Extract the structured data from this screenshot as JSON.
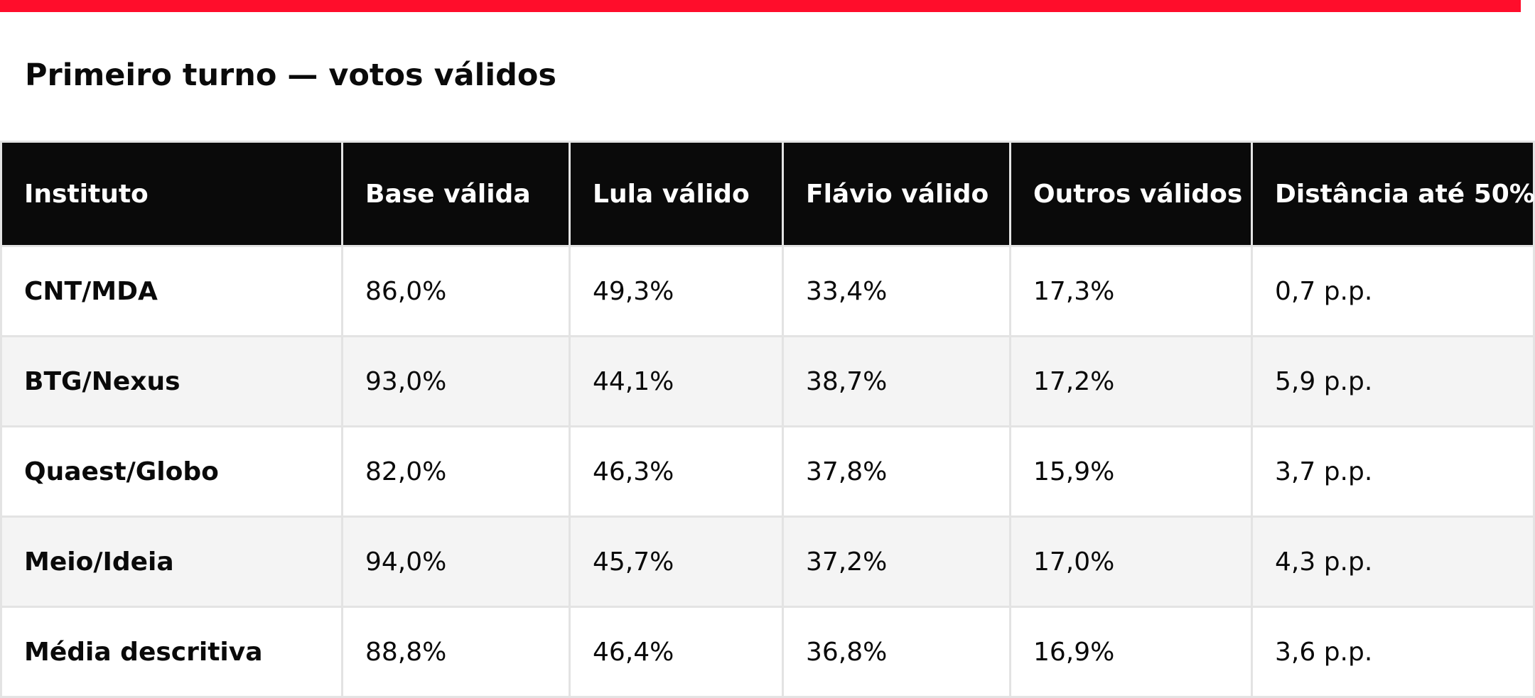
{
  "page": {
    "title": "Primeiro turno — votos válidos",
    "accent_color": "#ff0d2b",
    "header_bg": "#0a0a0a",
    "alt_row_bg": "#f4f4f4"
  },
  "table": {
    "headers": [
      "Instituto",
      "Base válida",
      "Lula válido",
      "Flávio válido",
      "Outros válidos",
      "Distância até 50%"
    ],
    "rows": [
      [
        "CNT/MDA",
        "86,0%",
        "49,3%",
        "33,4%",
        "17,3%",
        "0,7 p.p."
      ],
      [
        "BTG/Nexus",
        "93,0%",
        "44,1%",
        "38,7%",
        "17,2%",
        "5,9 p.p."
      ],
      [
        "Quaest/Globo",
        "82,0%",
        "46,3%",
        "37,8%",
        "15,9%",
        "3,7 p.p."
      ],
      [
        "Meio/Ideia",
        "94,0%",
        "45,7%",
        "37,2%",
        "17,0%",
        "4,3 p.p."
      ],
      [
        "Média descritiva",
        "88,8%",
        "46,4%",
        "36,8%",
        "16,9%",
        "3,6 p.p."
      ]
    ]
  }
}
